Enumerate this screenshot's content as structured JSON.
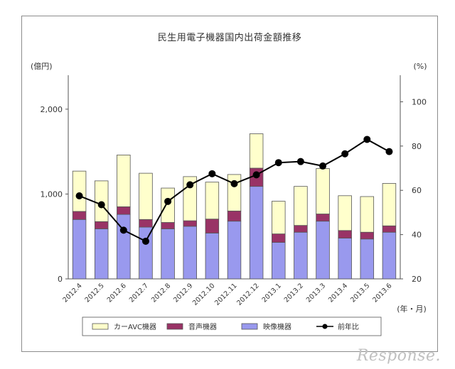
{
  "chart_data": {
    "type": "bar+line",
    "title": "民生用電子機器国内出荷金額推移",
    "left_axis_unit": "(億円)",
    "right_axis_unit": "(%)",
    "x_unit": "(年・月)",
    "categories": [
      "2012.4",
      "2012.5",
      "2012.6",
      "2012.7",
      "2012.8",
      "2012.9",
      "2012.10",
      "2012.11",
      "2012.12",
      "2013.1",
      "2013.2",
      "2013.3",
      "2013.4",
      "2013.5",
      "2013.6"
    ],
    "left_ylim": [
      0,
      2400
    ],
    "left_ticks": [
      {
        "v": 0,
        "label": "0"
      },
      {
        "v": 1000,
        "label": "1,000"
      },
      {
        "v": 2000,
        "label": "2,000"
      }
    ],
    "right_ylim": [
      20,
      112
    ],
    "right_ticks": [
      {
        "v": 20,
        "label": "20"
      },
      {
        "v": 40,
        "label": "40"
      },
      {
        "v": 60,
        "label": "60"
      },
      {
        "v": 80,
        "label": "80"
      },
      {
        "v": 100,
        "label": "100"
      }
    ],
    "stacked_series": [
      {
        "name": "映像機器",
        "color": "#9999ee",
        "values": [
          700,
          590,
          760,
          610,
          590,
          620,
          540,
          680,
          1090,
          430,
          550,
          680,
          480,
          470,
          550
        ]
      },
      {
        "name": "音声機器",
        "color": "#993366",
        "values": [
          95,
          85,
          90,
          90,
          75,
          65,
          165,
          120,
          215,
          100,
          80,
          85,
          90,
          80,
          75
        ]
      },
      {
        "name": "カーAVC機器",
        "color": "#ffffcc",
        "values": [
          475,
          480,
          610,
          545,
          405,
          520,
          435,
          430,
          405,
          385,
          460,
          535,
          410,
          420,
          500
        ]
      }
    ],
    "line_series": {
      "name": "前年比",
      "color": "#000000",
      "values": [
        57.5,
        53.5,
        42,
        37,
        55,
        62.5,
        67.5,
        63,
        67,
        72.5,
        73,
        71,
        76.5,
        83,
        77.5
      ]
    },
    "legend_order": [
      "カーAVC機器",
      "音声機器",
      "映像機器",
      "前年比"
    ],
    "legend_position": "bottom",
    "grid": false
  },
  "watermark": "Response."
}
